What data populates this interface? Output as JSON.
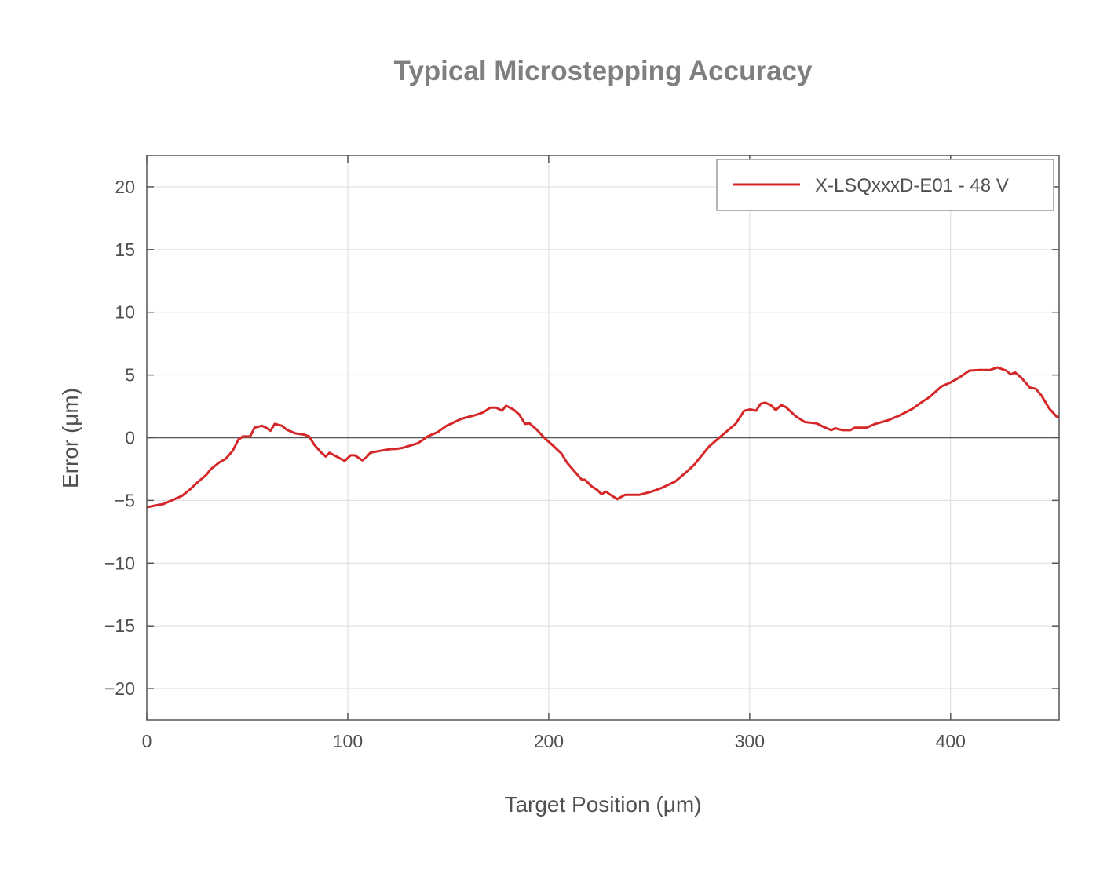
{
  "chart_data": {
    "type": "line",
    "title": "Typical Microstepping Accuracy",
    "xlabel": "Target Position (μm)",
    "ylabel": "Error (μm)",
    "xlim": [
      0,
      454
    ],
    "ylim": [
      -22.5,
      22.5
    ],
    "xticks": [
      0,
      100,
      200,
      300,
      400
    ],
    "yticks": [
      20,
      15,
      10,
      5,
      0,
      -5,
      -10,
      -15,
      -20
    ],
    "xtick_labels": [
      "0",
      "100",
      "200",
      "300",
      "400"
    ],
    "ytick_labels": [
      "20",
      "15",
      "10",
      "5",
      "0",
      "−5",
      "−10",
      "−15",
      "−20"
    ],
    "grid": true,
    "legend_position": "top-right",
    "series": [
      {
        "name": "X-LSQxxxD-E01 - 48 V",
        "color": "#d62728",
        "x": [
          0,
          5.8,
          8,
          13,
          17.4,
          21.7,
          25.3,
          29.7,
          31.9,
          36.2,
          39.1,
          42.7,
          45.6,
          47.8,
          51.4,
          53.6,
          57.2,
          59.4,
          61.5,
          63.7,
          67.3,
          69.5,
          73.8,
          78.2,
          80.8,
          83.3,
          86.9,
          89.1,
          90.9,
          95.6,
          98.5,
          101.4,
          103.5,
          107.2,
          109.3,
          111.2,
          115.8,
          121.6,
          123.8,
          127.4,
          134.7,
          137.6,
          139.7,
          144.8,
          149.1,
          151.3,
          155.7,
          158.6,
          163.6,
          167.2,
          170.9,
          173.8,
          176.7,
          178.8,
          182.4,
          185.3,
          188.2,
          190.4,
          194.0,
          198.4,
          201.3,
          206.3,
          209.2,
          212.9,
          216.5,
          218,
          221.5,
          224.1,
          226.3,
          228.5,
          230.7,
          234.1,
          238.0,
          245.3,
          251.2,
          256.3,
          262.9,
          268.1,
          272.4,
          279.8,
          285.6,
          293.0,
          297.3,
          300.3,
          303.2,
          305.4,
          307.6,
          310.5,
          313.0,
          315.7,
          317.9,
          323.0,
          327.4,
          333.2,
          336.9,
          340.6,
          342.5,
          346.4,
          350.1,
          352.3,
          358.1,
          362.5,
          369.1,
          374.3,
          380.9,
          385.3,
          389.6,
          395.5,
          399.9,
          404.3,
          409.4,
          414.5,
          419.7,
          423.3,
          427.7,
          429.9,
          432.1,
          435.1,
          439.5,
          442.4,
          445.3,
          449.0,
          452.6,
          454
        ],
        "y": [
          -5.55,
          -5.35,
          -5.3,
          -4.95,
          -4.65,
          -4.1,
          -3.55,
          -2.95,
          -2.5,
          -1.95,
          -1.7,
          -1.05,
          -0.15,
          0.1,
          0.1,
          0.8,
          0.95,
          0.8,
          0.55,
          1.1,
          0.95,
          0.65,
          0.35,
          0.25,
          0.1,
          -0.55,
          -1.2,
          -1.5,
          -1.2,
          -1.6,
          -1.85,
          -1.4,
          -1.4,
          -1.8,
          -1.55,
          -1.2,
          -1.05,
          -0.9,
          -0.9,
          -0.8,
          -0.45,
          -0.15,
          0.1,
          0.45,
          0.95,
          1.1,
          1.45,
          1.6,
          1.8,
          2.0,
          2.4,
          2.4,
          2.15,
          2.55,
          2.25,
          1.85,
          1.1,
          1.15,
          0.65,
          -0.1,
          -0.5,
          -1.25,
          -2.0,
          -2.7,
          -3.35,
          -3.35,
          -3.9,
          -4.15,
          -4.5,
          -4.3,
          -4.55,
          -4.9,
          -4.55,
          -4.55,
          -4.3,
          -4.0,
          -3.5,
          -2.8,
          -2.15,
          -0.7,
          0.1,
          1.1,
          2.15,
          2.25,
          2.15,
          2.7,
          2.8,
          2.6,
          2.2,
          2.6,
          2.45,
          1.7,
          1.25,
          1.15,
          0.85,
          0.6,
          0.75,
          0.6,
          0.6,
          0.8,
          0.8,
          1.1,
          1.4,
          1.75,
          2.3,
          2.8,
          3.25,
          4.1,
          4.4,
          4.8,
          5.35,
          5.4,
          5.4,
          5.6,
          5.35,
          5.05,
          5.2,
          4.8,
          4.0,
          3.9,
          3.35,
          2.35,
          1.7,
          1.6
        ]
      }
    ]
  }
}
